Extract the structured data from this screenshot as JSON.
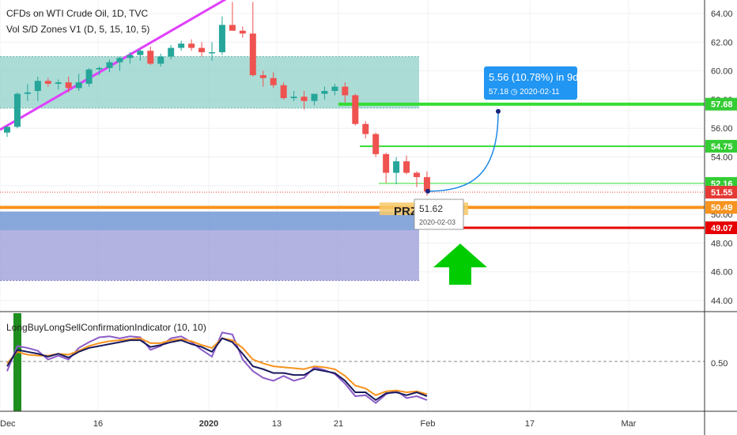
{
  "header": {
    "symbol_line": "CFDs on WTI Crude Oil, 1D, TVC",
    "indicator_line": "Vol S/D Zones V1 (D, 5, 15, 10, 5)"
  },
  "oscillator": {
    "label": "LongBuyLongSellConfirmationIndicator (10, 10)",
    "level_label": "0.50",
    "line1_color": "#1a1a5e",
    "line2_color": "#f7931e",
    "line3_color": "#8b5cc7"
  },
  "annotations": {
    "projection_main": "5.56 (10.78%) in 9d",
    "projection_sub": "57.18 ◷ 2020-02-11",
    "point_price": "51.62",
    "point_date": "2020-02-03",
    "prz_label": "PRZ"
  },
  "price_badges": [
    {
      "label": "57.68",
      "value": 57.68,
      "color": "#33cc33"
    },
    {
      "label": "54.75",
      "value": 54.75,
      "color": "#33cc33"
    },
    {
      "label": "52.16",
      "value": 52.16,
      "color": "#33cc33"
    },
    {
      "label": "51.55",
      "value": 51.55,
      "color": "#e53935"
    },
    {
      "label": "50.49",
      "value": 50.49,
      "color": "#f7931e"
    },
    {
      "label": "49.07",
      "value": 49.07,
      "color": "#e60000"
    }
  ],
  "colors": {
    "up_candle": "#26a69a",
    "down_candle": "#ef5350",
    "trendline": "#e040fb",
    "supply_zone": "#8fd0c8",
    "demand_zone": "#9a9ad8",
    "arrow": "#00cc00"
  },
  "chart_data": {
    "type": "candlestick",
    "y_ticks": [
      "64.00",
      "62.00",
      "60.00",
      "58.00",
      "56.00",
      "54.00",
      "52.00",
      "50.00",
      "48.00",
      "46.00",
      "44.00"
    ],
    "ylim": [
      43.0,
      64.8
    ],
    "x_tick_labels": [
      "Dec",
      "16",
      "2020",
      "13",
      "21",
      "Feb",
      "17",
      "Mar"
    ],
    "candles": [
      {
        "date": "2019-12-03",
        "o": 55.7,
        "h": 56.2,
        "l": 55.4,
        "c": 56.1
      },
      {
        "date": "2019-12-04",
        "o": 56.1,
        "h": 58.5,
        "l": 56.0,
        "c": 58.4
      },
      {
        "date": "2019-12-05",
        "o": 58.4,
        "h": 59.1,
        "l": 57.9,
        "c": 58.5
      },
      {
        "date": "2019-12-06",
        "o": 58.6,
        "h": 59.6,
        "l": 57.9,
        "c": 59.3
      },
      {
        "date": "2019-12-09",
        "o": 59.3,
        "h": 59.5,
        "l": 58.9,
        "c": 59.1
      },
      {
        "date": "2019-12-10",
        "o": 59.1,
        "h": 59.4,
        "l": 58.7,
        "c": 59.2
      },
      {
        "date": "2019-12-11",
        "o": 59.2,
        "h": 59.6,
        "l": 58.5,
        "c": 58.8
      },
      {
        "date": "2019-12-12",
        "o": 58.8,
        "h": 59.8,
        "l": 58.6,
        "c": 59.2
      },
      {
        "date": "2019-12-13",
        "o": 59.1,
        "h": 60.2,
        "l": 58.9,
        "c": 60.1
      },
      {
        "date": "2019-12-16",
        "o": 60.1,
        "h": 60.3,
        "l": 59.7,
        "c": 60.2
      },
      {
        "date": "2019-12-17",
        "o": 60.2,
        "h": 60.8,
        "l": 59.9,
        "c": 60.6
      },
      {
        "date": "2019-12-18",
        "o": 60.6,
        "h": 61.0,
        "l": 60.0,
        "c": 60.9
      },
      {
        "date": "2019-12-19",
        "o": 60.9,
        "h": 61.3,
        "l": 60.5,
        "c": 61.1
      },
      {
        "date": "2019-12-20",
        "o": 61.1,
        "h": 61.5,
        "l": 60.7,
        "c": 61.4
      },
      {
        "date": "2019-12-23",
        "o": 61.4,
        "h": 61.7,
        "l": 60.4,
        "c": 60.5
      },
      {
        "date": "2019-12-24",
        "o": 60.5,
        "h": 61.2,
        "l": 60.3,
        "c": 61.0
      },
      {
        "date": "2019-12-26",
        "o": 61.0,
        "h": 61.8,
        "l": 60.8,
        "c": 61.6
      },
      {
        "date": "2019-12-27",
        "o": 61.6,
        "h": 62.1,
        "l": 61.4,
        "c": 61.9
      },
      {
        "date": "2019-12-30",
        "o": 61.9,
        "h": 62.2,
        "l": 61.4,
        "c": 61.6
      },
      {
        "date": "2019-12-31",
        "o": 61.6,
        "h": 62.0,
        "l": 61.0,
        "c": 61.3
      },
      {
        "date": "2020-01-02",
        "o": 61.3,
        "h": 62.0,
        "l": 60.7,
        "c": 61.3
      },
      {
        "date": "2020-01-03",
        "o": 61.3,
        "h": 63.8,
        "l": 61.1,
        "c": 63.2
      },
      {
        "date": "2020-01-06",
        "o": 63.2,
        "h": 64.8,
        "l": 62.8,
        "c": 62.8
      },
      {
        "date": "2020-01-07",
        "o": 62.8,
        "h": 63.1,
        "l": 62.3,
        "c": 62.6
      },
      {
        "date": "2020-01-08",
        "o": 62.6,
        "h": 65.6,
        "l": 59.6,
        "c": 59.7
      },
      {
        "date": "2020-01-09",
        "o": 59.7,
        "h": 60.0,
        "l": 58.9,
        "c": 59.5
      },
      {
        "date": "2020-01-10",
        "o": 59.5,
        "h": 59.9,
        "l": 58.8,
        "c": 59.0
      },
      {
        "date": "2020-01-13",
        "o": 59.0,
        "h": 59.2,
        "l": 58.0,
        "c": 58.1
      },
      {
        "date": "2020-01-14",
        "o": 58.1,
        "h": 58.6,
        "l": 57.9,
        "c": 58.2
      },
      {
        "date": "2020-01-15",
        "o": 58.2,
        "h": 58.6,
        "l": 57.3,
        "c": 57.9
      },
      {
        "date": "2020-01-16",
        "o": 57.9,
        "h": 58.4,
        "l": 57.6,
        "c": 58.4
      },
      {
        "date": "2020-01-17",
        "o": 58.4,
        "h": 58.9,
        "l": 58.0,
        "c": 58.6
      },
      {
        "date": "2020-01-20",
        "o": 58.6,
        "h": 59.1,
        "l": 58.3,
        "c": 58.9
      },
      {
        "date": "2020-01-21",
        "o": 58.9,
        "h": 59.2,
        "l": 57.8,
        "c": 58.3
      },
      {
        "date": "2020-01-22",
        "o": 58.3,
        "h": 58.4,
        "l": 56.2,
        "c": 56.3
      },
      {
        "date": "2020-01-23",
        "o": 56.3,
        "h": 56.5,
        "l": 55.3,
        "c": 55.6
      },
      {
        "date": "2020-01-24",
        "o": 55.6,
        "h": 55.7,
        "l": 54.0,
        "c": 54.2
      },
      {
        "date": "2020-01-27",
        "o": 54.2,
        "h": 54.3,
        "l": 52.2,
        "c": 52.9
      },
      {
        "date": "2020-01-28",
        "o": 52.9,
        "h": 54.0,
        "l": 52.1,
        "c": 53.7
      },
      {
        "date": "2020-01-29",
        "o": 53.7,
        "h": 54.1,
        "l": 52.8,
        "c": 52.9
      },
      {
        "date": "2020-01-30",
        "o": 52.9,
        "h": 53.0,
        "l": 51.9,
        "c": 52.6
      },
      {
        "date": "2020-01-31",
        "o": 52.6,
        "h": 53.0,
        "l": 51.3,
        "c": 51.6
      }
    ],
    "oscillator": {
      "ylim": [
        0,
        1
      ],
      "level": 0.5,
      "line1": [
        0.45,
        0.62,
        0.6,
        0.58,
        0.55,
        0.58,
        0.54,
        0.6,
        0.64,
        0.66,
        0.68,
        0.7,
        0.72,
        0.72,
        0.65,
        0.67,
        0.7,
        0.72,
        0.68,
        0.65,
        0.6,
        0.74,
        0.7,
        0.58,
        0.45,
        0.42,
        0.38,
        0.38,
        0.36,
        0.36,
        0.42,
        0.4,
        0.38,
        0.3,
        0.18,
        0.18,
        0.1,
        0.17,
        0.18,
        0.15,
        0.18,
        0.14
      ],
      "line2": [
        0.48,
        0.6,
        0.57,
        0.56,
        0.56,
        0.58,
        0.57,
        0.61,
        0.66,
        0.69,
        0.71,
        0.72,
        0.73,
        0.74,
        0.69,
        0.69,
        0.72,
        0.73,
        0.71,
        0.67,
        0.64,
        0.74,
        0.72,
        0.64,
        0.52,
        0.48,
        0.45,
        0.44,
        0.43,
        0.42,
        0.45,
        0.44,
        0.42,
        0.35,
        0.25,
        0.22,
        0.15,
        0.19,
        0.2,
        0.18,
        0.19,
        0.16
      ],
      "line3": [
        0.4,
        0.66,
        0.64,
        0.61,
        0.52,
        0.56,
        0.52,
        0.64,
        0.7,
        0.75,
        0.76,
        0.74,
        0.76,
        0.75,
        0.62,
        0.66,
        0.74,
        0.76,
        0.7,
        0.62,
        0.55,
        0.8,
        0.78,
        0.52,
        0.4,
        0.33,
        0.3,
        0.35,
        0.3,
        0.33,
        0.44,
        0.41,
        0.37,
        0.27,
        0.14,
        0.15,
        0.07,
        0.16,
        0.2,
        0.12,
        0.14,
        0.1
      ]
    }
  }
}
